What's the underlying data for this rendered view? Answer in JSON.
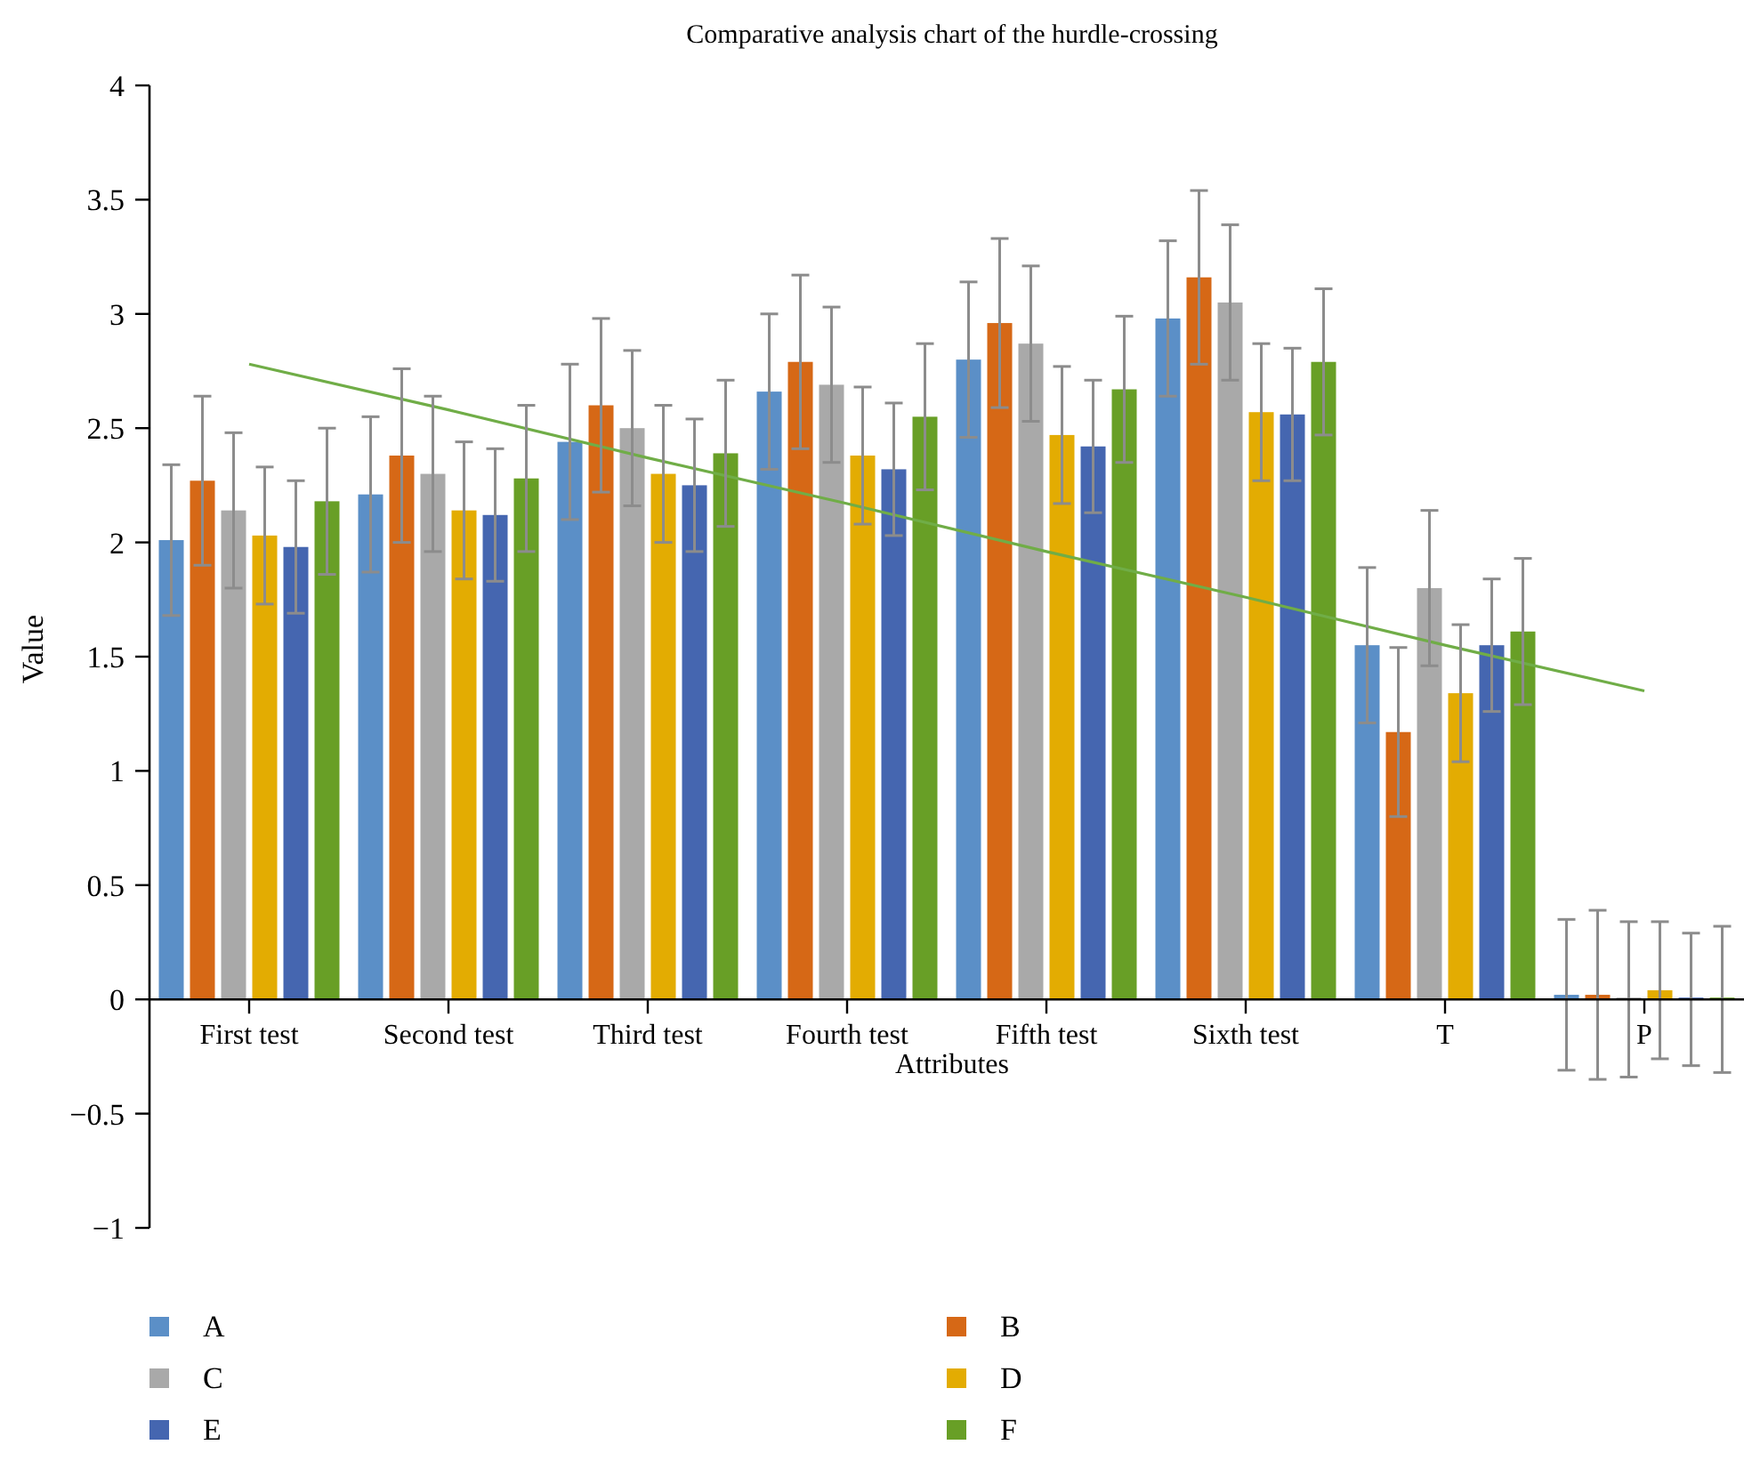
{
  "chart_data": {
    "type": "bar",
    "title": "Comparative analysis chart of the hurdle-crossing",
    "xlabel": "Attributes",
    "ylabel": "Value",
    "categories": [
      "First test",
      "Second test",
      "Third test",
      "Fourth test",
      "Fifth test",
      "Sixth test",
      "T",
      "P"
    ],
    "ylim": [
      -1,
      4
    ],
    "yticks": [
      {
        "value": -1,
        "label": "−1"
      },
      {
        "value": -0.5,
        "label": "−0.5"
      },
      0,
      0.5,
      1,
      1.5,
      2,
      2.5,
      3,
      3.5,
      4
    ],
    "grid": false,
    "legend": "bottom",
    "series": [
      {
        "name": "A",
        "color": "#5b8fc7",
        "values": [
          2.01,
          2.21,
          2.44,
          2.66,
          2.8,
          2.98,
          1.55,
          0.02
        ],
        "errors": [
          0.33,
          0.34,
          0.34,
          0.34,
          0.34,
          0.34,
          0.34,
          0.33
        ]
      },
      {
        "name": "B",
        "color": "#d66816",
        "values": [
          2.27,
          2.38,
          2.6,
          2.79,
          2.96,
          3.16,
          1.17,
          0.02
        ],
        "errors": [
          0.37,
          0.38,
          0.38,
          0.38,
          0.37,
          0.38,
          0.37,
          0.37
        ]
      },
      {
        "name": "C",
        "color": "#a9a9a9",
        "values": [
          2.14,
          2.3,
          2.5,
          2.69,
          2.87,
          3.05,
          1.8,
          0
        ],
        "errors": [
          0.34,
          0.34,
          0.34,
          0.34,
          0.34,
          0.34,
          0.34,
          0.34
        ]
      },
      {
        "name": "D",
        "color": "#e3ac02",
        "values": [
          2.03,
          2.14,
          2.3,
          2.38,
          2.47,
          2.57,
          1.34,
          0.04
        ],
        "errors": [
          0.3,
          0.3,
          0.3,
          0.3,
          0.3,
          0.3,
          0.3,
          0.3
        ]
      },
      {
        "name": "E",
        "color": "#4566b0",
        "values": [
          1.98,
          2.12,
          2.25,
          2.32,
          2.42,
          2.56,
          1.55,
          0
        ],
        "errors": [
          0.29,
          0.29,
          0.29,
          0.29,
          0.29,
          0.29,
          0.29,
          0.29
        ]
      },
      {
        "name": "F",
        "color": "#689f26",
        "values": [
          2.18,
          2.28,
          2.39,
          2.55,
          2.67,
          2.79,
          1.61,
          0
        ],
        "errors": [
          0.32,
          0.32,
          0.32,
          0.32,
          0.32,
          0.32,
          0.32,
          0.32
        ]
      },
      {
        "type": "line",
        "color": "#70ad47",
        "values": [
          2.78,
          2.58,
          2.37,
          2.17,
          1.96,
          1.76,
          1.55,
          1.35
        ]
      }
    ]
  }
}
